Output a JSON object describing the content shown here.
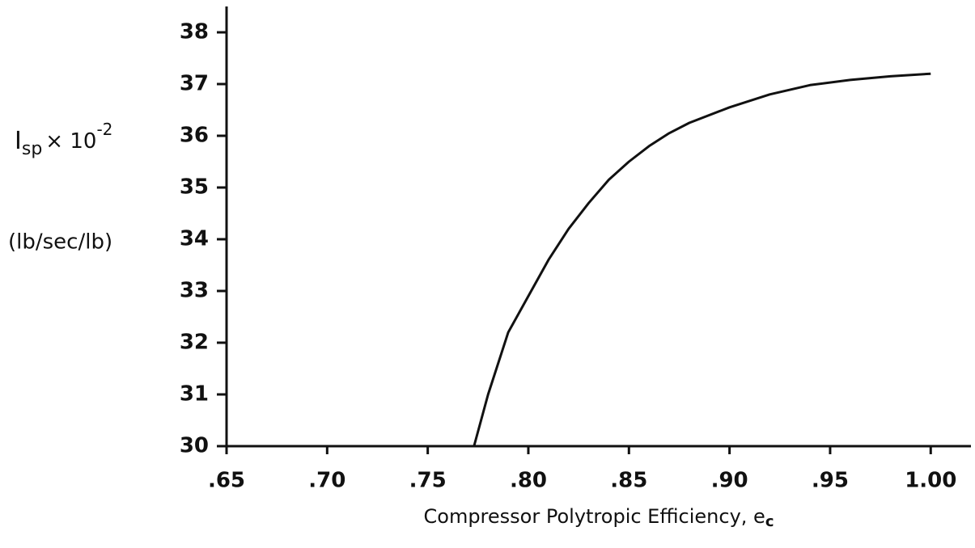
{
  "chart_data": {
    "type": "line",
    "y_label_main": "I",
    "y_label_sub": "sp",
    "y_label_mult": "× 10",
    "y_label_exp": "-2",
    "y_units": "(lb/sec/lb)",
    "x_label": "Compressor Polytropic Efficiency, e",
    "x_label_sub": "c",
    "x": [
      0.773,
      0.78,
      0.79,
      0.8,
      0.81,
      0.82,
      0.83,
      0.84,
      0.85,
      0.86,
      0.87,
      0.88,
      0.9,
      0.92,
      0.94,
      0.96,
      0.98,
      1.0
    ],
    "series": [
      {
        "color": "#111111",
        "values": [
          30,
          31,
          32.2,
          32.9,
          33.6,
          34.2,
          34.7,
          35.15,
          35.5,
          35.8,
          36.05,
          36.25,
          36.55,
          36.8,
          36.98,
          37.08,
          37.15,
          37.2
        ]
      }
    ],
    "xlim": [
      0.65,
      1.02
    ],
    "ylim": [
      30,
      38.5
    ],
    "xticks": [
      {
        "value": 0.65,
        "label": ".65"
      },
      {
        "value": 0.7,
        "label": ".70"
      },
      {
        "value": 0.75,
        "label": ".75"
      },
      {
        "value": 0.8,
        "label": ".80"
      },
      {
        "value": 0.85,
        "label": ".85"
      },
      {
        "value": 0.9,
        "label": ".90"
      },
      {
        "value": 0.95,
        "label": ".95"
      },
      {
        "value": 1.0,
        "label": "1.00"
      }
    ],
    "yticks": [
      30,
      31,
      32,
      33,
      34,
      35,
      36,
      37,
      38
    ],
    "grid": false
  }
}
